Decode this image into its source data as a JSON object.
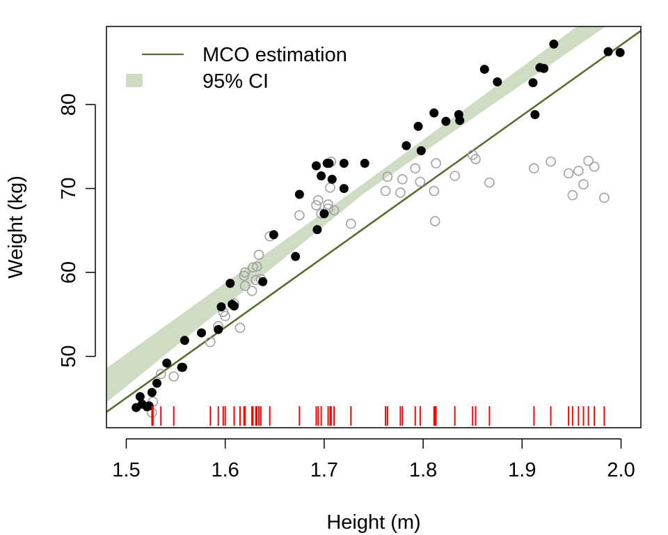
{
  "chart_data": {
    "type": "scatter",
    "title": "",
    "xlabel": "Height (m)",
    "ylabel": "Weight (kg)",
    "xlim": [
      1.48,
      2.02
    ],
    "ylim": [
      41.5,
      89.3
    ],
    "xticks": [
      1.5,
      1.6,
      1.7,
      1.8,
      1.9,
      2.0
    ],
    "xtick_labels": [
      "1.5",
      "1.6",
      "1.7",
      "1.8",
      "1.9",
      "2.0"
    ],
    "yticks": [
      50,
      60,
      70,
      80
    ],
    "ytick_labels": [
      "50",
      "60",
      "70",
      "80"
    ],
    "legend": {
      "position": "top-left",
      "entries": [
        {
          "label": "MCO estimation",
          "kind": "line",
          "color": "#556b2f"
        },
        {
          "label": "95% CI",
          "kind": "box",
          "color": "#cfdcc4"
        }
      ]
    },
    "colors": {
      "fit_line": "#556b2f",
      "ci_band": "#cfdcc4",
      "filled_points": "#000000",
      "open_points": "#a0a0a0",
      "rug": "#ff0000"
    },
    "fit": {
      "intercept": -81.1,
      "slope": 84.1
    },
    "ci_band": {
      "upper": [
        [
          1.48,
          48.6
        ],
        [
          1.74,
          70.6
        ],
        [
          2.02,
          94.9
        ]
      ],
      "lower": [
        [
          1.48,
          44.5
        ],
        [
          1.74,
          69.4
        ],
        [
          2.02,
          92.2
        ]
      ]
    },
    "series": [
      {
        "name": "observed (filled)",
        "marker": "filled-circle",
        "x": [
          1.51,
          1.514,
          1.516,
          1.521,
          1.523,
          1.526,
          1.531,
          1.541,
          1.556,
          1.557,
          1.559,
          1.576,
          1.593,
          1.596,
          1.605,
          1.607,
          1.609,
          1.638,
          1.649,
          1.671,
          1.675,
          1.692,
          1.693,
          1.697,
          1.7,
          1.703,
          1.705,
          1.708,
          1.72,
          1.72,
          1.741,
          1.783,
          1.795,
          1.798,
          1.811,
          1.823,
          1.836,
          1.837,
          1.862,
          1.875,
          1.911,
          1.913,
          1.918,
          1.922,
          1.932,
          1.987,
          1.999
        ],
        "y": [
          43.9,
          45.2,
          44.3,
          44.0,
          44.1,
          45.7,
          46.8,
          49.2,
          48.7,
          48.7,
          51.9,
          52.8,
          53.2,
          55.9,
          58.7,
          56.2,
          56.0,
          58.9,
          64.5,
          61.9,
          69.3,
          72.7,
          65.1,
          71.5,
          67.0,
          73.0,
          73.0,
          71.1,
          73.0,
          70.0,
          73.0,
          75.1,
          77.4,
          74.5,
          79.0,
          78.0,
          78.8,
          78.1,
          84.2,
          82.7,
          82.6,
          78.8,
          84.4,
          84.3,
          87.2,
          86.3,
          86.2
        ]
      },
      {
        "name": "unobserved (open)",
        "marker": "open-circle",
        "x": [
          1.526,
          1.527,
          1.535,
          1.548,
          1.585,
          1.593,
          1.598,
          1.6,
          1.609,
          1.615,
          1.619,
          1.62,
          1.62,
          1.627,
          1.628,
          1.631,
          1.632,
          1.634,
          1.636,
          1.645,
          1.675,
          1.692,
          1.694,
          1.697,
          1.704,
          1.704,
          1.706,
          1.707,
          1.71,
          1.727,
          1.762,
          1.764,
          1.777,
          1.779,
          1.792,
          1.797,
          1.811,
          1.812,
          1.813,
          1.832,
          1.85,
          1.853,
          1.867,
          1.912,
          1.929,
          1.947,
          1.951,
          1.957,
          1.962,
          1.967,
          1.973,
          1.983
        ],
        "y": [
          43.3,
          44.6,
          47.9,
          47.6,
          51.7,
          53.6,
          55.3,
          54.8,
          56.3,
          53.4,
          59.6,
          60.0,
          58.4,
          57.8,
          60.6,
          59.1,
          60.7,
          62.1,
          59.2,
          64.3,
          66.8,
          68.0,
          68.6,
          67.0,
          67.6,
          68.1,
          70.1,
          73.2,
          67.4,
          65.8,
          69.7,
          71.4,
          69.5,
          71.1,
          72.4,
          70.8,
          69.7,
          66.1,
          73.0,
          71.5,
          74.0,
          73.5,
          70.7,
          72.4,
          73.2,
          71.8,
          69.2,
          72.1,
          70.5,
          73.3,
          72.6,
          68.9
        ]
      }
    ],
    "rug": {
      "y": 42.9,
      "x": [
        1.526,
        1.527,
        1.535,
        1.548,
        1.585,
        1.593,
        1.598,
        1.6,
        1.609,
        1.615,
        1.619,
        1.62,
        1.627,
        1.628,
        1.631,
        1.632,
        1.634,
        1.636,
        1.645,
        1.675,
        1.692,
        1.694,
        1.697,
        1.704,
        1.706,
        1.707,
        1.71,
        1.727,
        1.762,
        1.764,
        1.777,
        1.779,
        1.792,
        1.797,
        1.811,
        1.812,
        1.813,
        1.832,
        1.85,
        1.853,
        1.867,
        1.912,
        1.929,
        1.947,
        1.951,
        1.957,
        1.962,
        1.967,
        1.973,
        1.983
      ]
    }
  }
}
